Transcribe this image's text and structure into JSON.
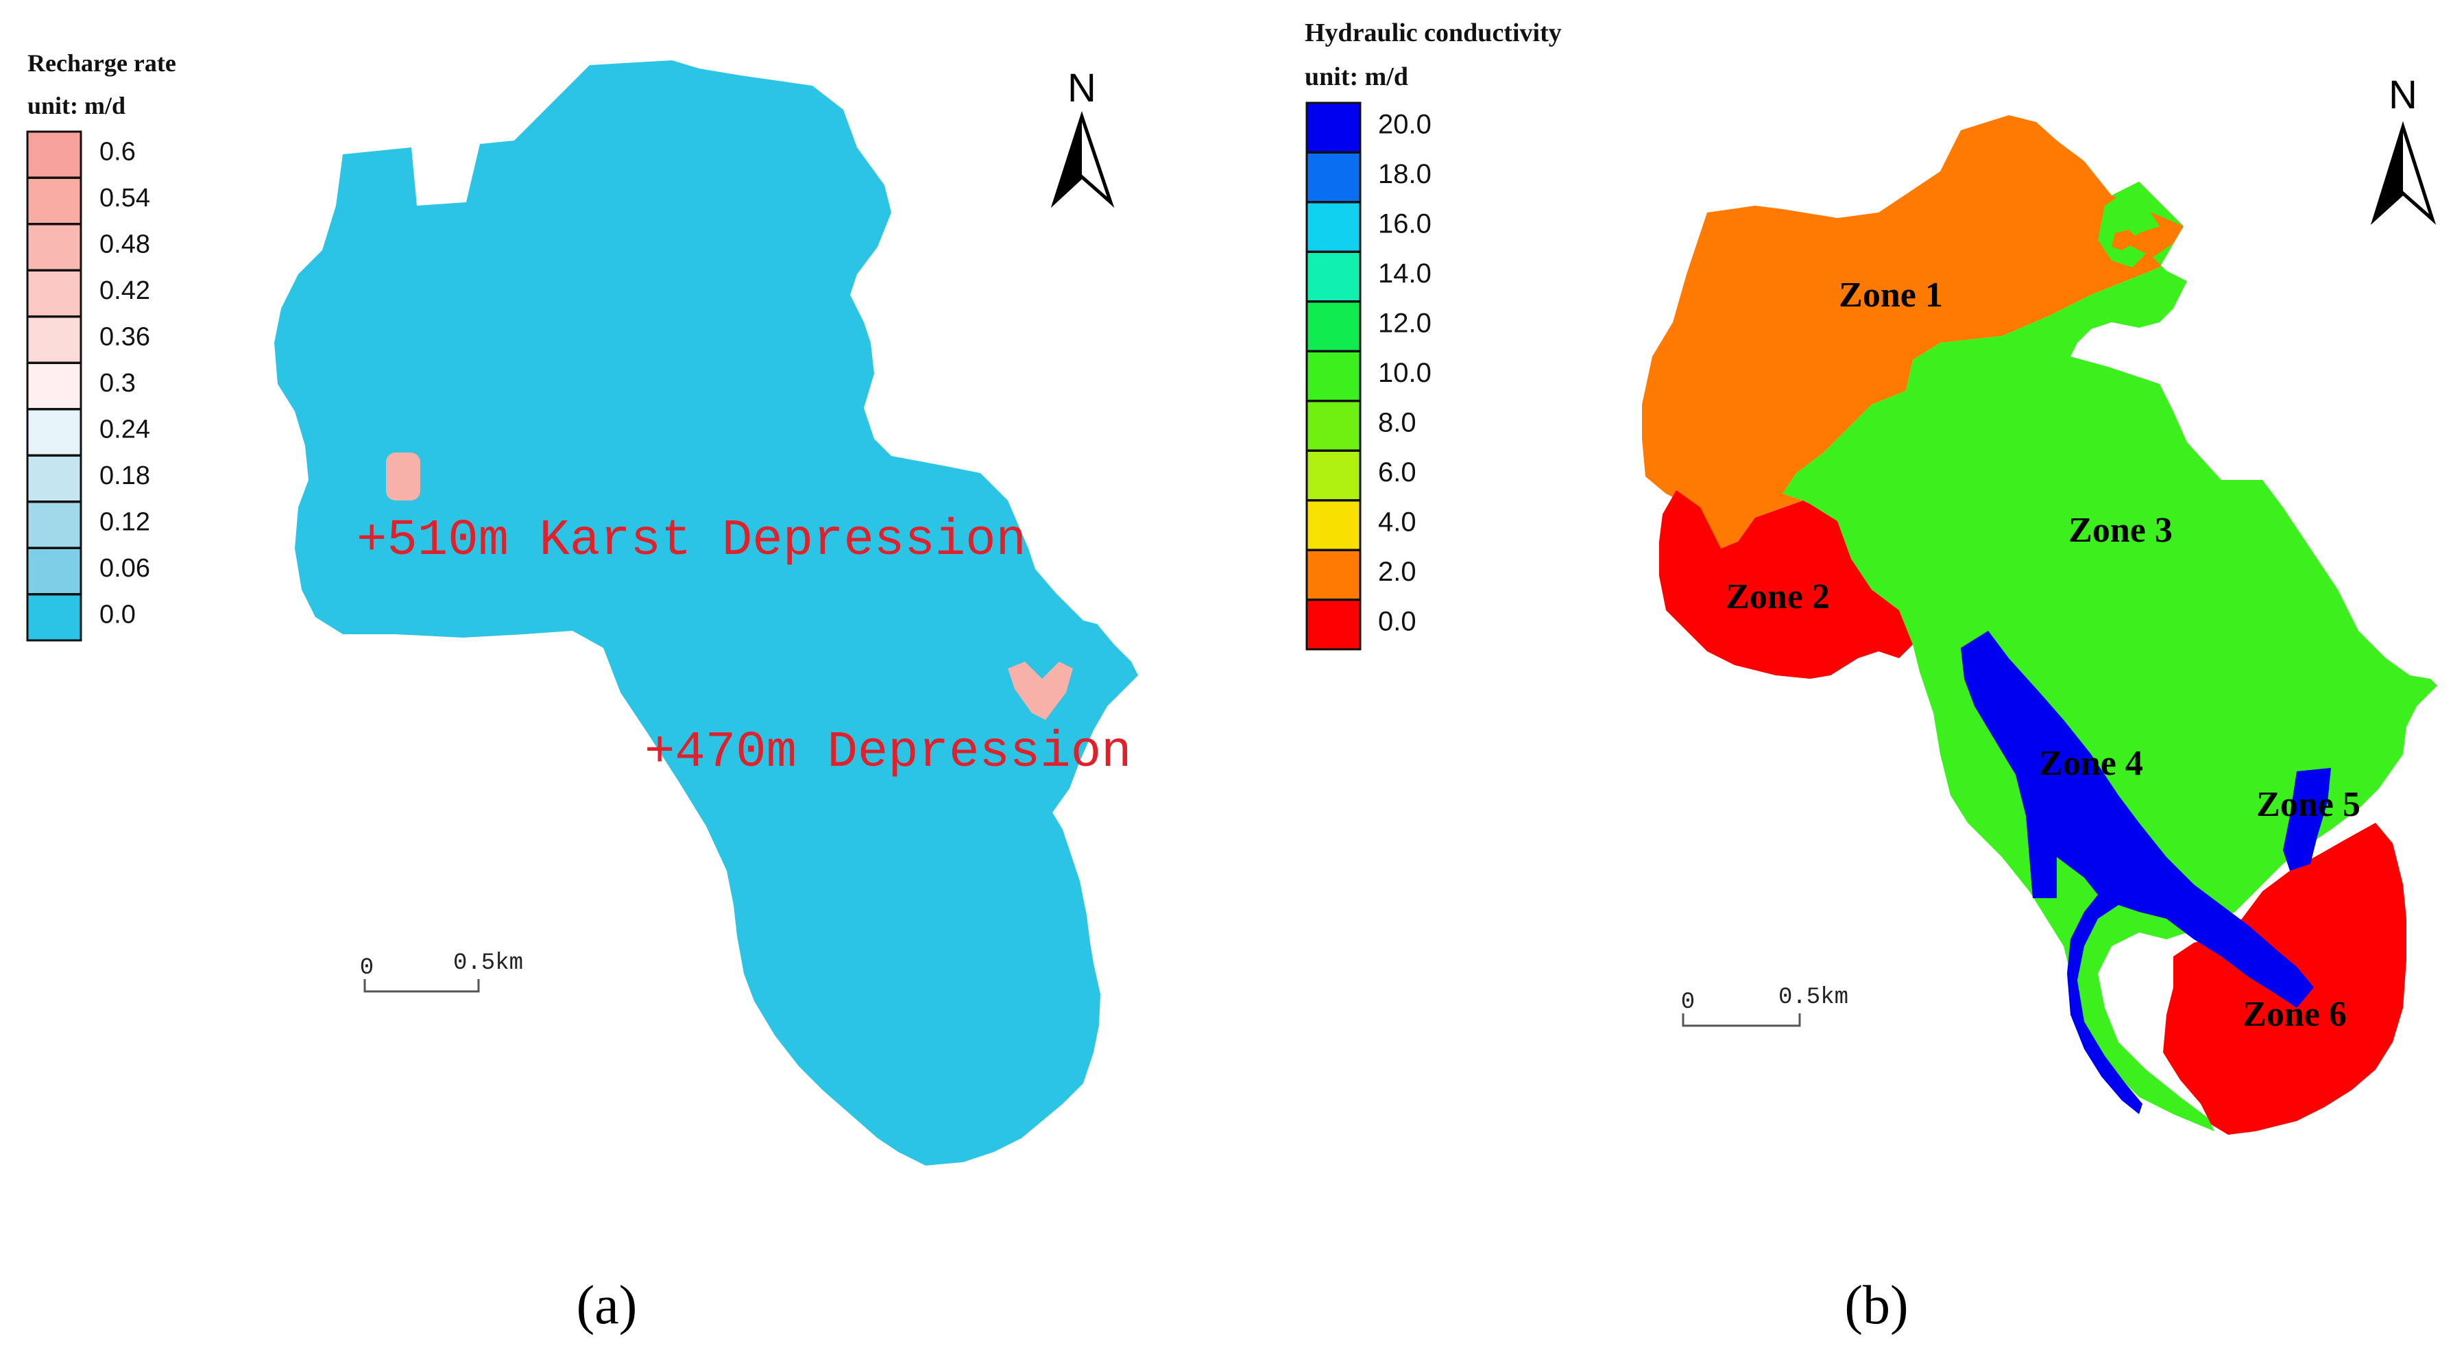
{
  "panel_a": {
    "label": "(a)",
    "legend": {
      "title": "Recharge rate",
      "unit": "unit: m/d",
      "entries": [
        {
          "label": "0.6",
          "color": "#f7a29a"
        },
        {
          "label": "0.54",
          "color": "#f8aca4"
        },
        {
          "label": "0.48",
          "color": "#f9b8b1"
        },
        {
          "label": "0.42",
          "color": "#fbc8c3"
        },
        {
          "label": "0.36",
          "color": "#fcdcd8"
        },
        {
          "label": "0.3",
          "color": "#fdf0ee"
        },
        {
          "label": "0.24",
          "color": "#e6f3f8"
        },
        {
          "label": "0.18",
          "color": "#c4e6f0"
        },
        {
          "label": "0.12",
          "color": "#a1d9ea"
        },
        {
          "label": "0.06",
          "color": "#7ccfe6"
        },
        {
          "label": "0.0",
          "color": "#2bc4e4"
        }
      ]
    },
    "base_color": "#2bc4e4",
    "depression_color": "#f7b1a8",
    "annotations": [
      {
        "text": "+510m Karst Depression",
        "color": "#e0202a"
      },
      {
        "text": "+470m Depression",
        "color": "#e0202a"
      }
    ],
    "north_label": "N",
    "scale": {
      "start": "0",
      "end": "0.5km"
    }
  },
  "panel_b": {
    "label": "(b)",
    "legend": {
      "title": "Hydraulic conductivity",
      "unit": "unit: m/d",
      "entries": [
        {
          "label": "20.0",
          "color": "#0000f0"
        },
        {
          "label": "18.0",
          "color": "#0a6ef0"
        },
        {
          "label": "16.0",
          "color": "#10d2f0"
        },
        {
          "label": "14.0",
          "color": "#10f0b0"
        },
        {
          "label": "12.0",
          "color": "#10ec50"
        },
        {
          "label": "10.0",
          "color": "#3cf01e"
        },
        {
          "label": "8.0",
          "color": "#70f010"
        },
        {
          "label": "6.0",
          "color": "#b0f010"
        },
        {
          "label": "4.0",
          "color": "#f8e000"
        },
        {
          "label": "2.0",
          "color": "#ff7a00"
        },
        {
          "label": "0.0",
          "color": "#ff0000"
        }
      ]
    },
    "zones": [
      {
        "name": "Zone 1",
        "color": "#ff7a00"
      },
      {
        "name": "Zone 2",
        "color": "#ff0000"
      },
      {
        "name": "Zone 3",
        "color": "#3cf01e"
      },
      {
        "name": "Zone 4",
        "color": "#0000f0"
      },
      {
        "name": "Zone 5",
        "color": "#0000f0"
      },
      {
        "name": "Zone 6",
        "color": "#ff0000"
      }
    ],
    "north_label": "N",
    "scale": {
      "start": "0",
      "end": "0.5km"
    }
  }
}
